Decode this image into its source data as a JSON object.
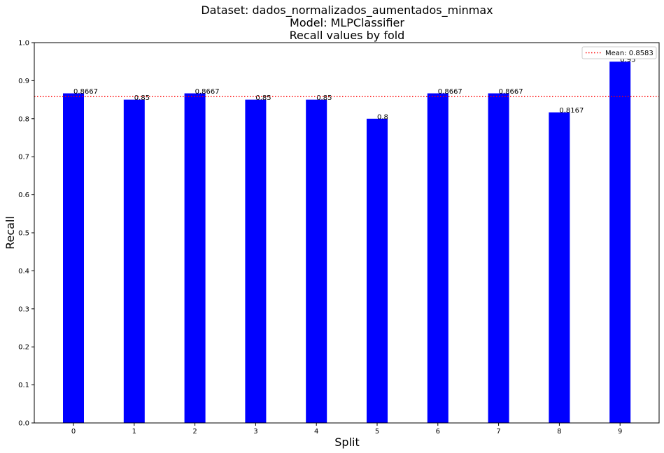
{
  "chart_data": {
    "type": "bar",
    "title_lines": [
      "Dataset: dados_normalizados_aumentados_minmax",
      "Model: MLPClassifier",
      "Recall values by fold"
    ],
    "xlabel": "Split",
    "ylabel": "Recall",
    "categories": [
      "0",
      "1",
      "2",
      "3",
      "4",
      "5",
      "6",
      "7",
      "8",
      "9"
    ],
    "values": [
      0.8667,
      0.85,
      0.8667,
      0.85,
      0.85,
      0.8,
      0.8667,
      0.8667,
      0.8167,
      0.95
    ],
    "data_labels": [
      "0.8667",
      "0.85",
      "0.8667",
      "0.85",
      "0.85",
      "0.8",
      "0.8667",
      "0.8667",
      "0.8167",
      "0.95"
    ],
    "ylim": [
      0,
      1.0
    ],
    "yticks": [
      "0.0",
      "0.1",
      "0.2",
      "0.3",
      "0.4",
      "0.5",
      "0.6",
      "0.7",
      "0.8",
      "0.9",
      "1.0"
    ],
    "bar_color": "#0000ff",
    "mean": {
      "value": 0.8583,
      "label": "Mean: 0.8583",
      "color": "#ff0000",
      "style": "dotted"
    },
    "legend_position": "top-right",
    "grid": false
  }
}
